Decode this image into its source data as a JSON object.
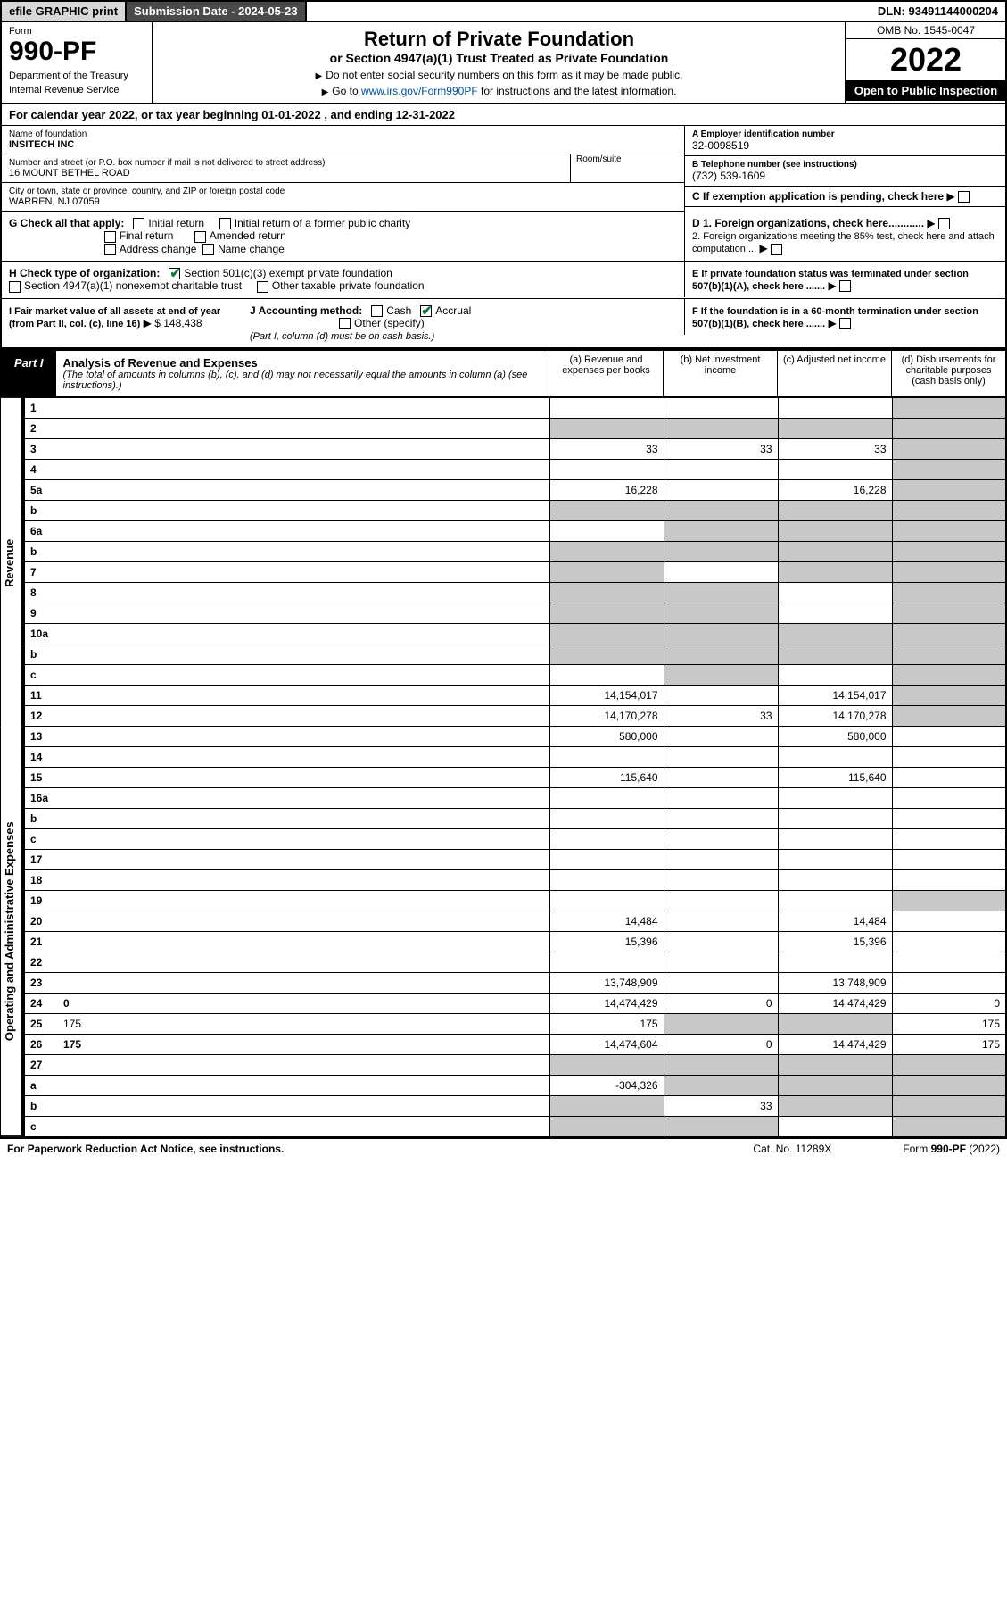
{
  "topbar": {
    "efile": "efile GRAPHIC print",
    "subdate_lbl": "Submission Date - 2024-05-23",
    "dln": "DLN: 93491144000204"
  },
  "header": {
    "form_word": "Form",
    "form_num": "990-PF",
    "dept": "Department of the Treasury",
    "irs": "Internal Revenue Service",
    "title": "Return of Private Foundation",
    "subtitle": "or Section 4947(a)(1) Trust Treated as Private Foundation",
    "instr1": "Do not enter social security numbers on this form as it may be made public.",
    "instr2": "Go to www.irs.gov/Form990PF for instructions and the latest information.",
    "link": "www.irs.gov/Form990PF",
    "omb": "OMB No. 1545-0047",
    "year": "2022",
    "open": "Open to Public Inspection"
  },
  "calyear": "For calendar year 2022, or tax year beginning 01-01-2022           , and ending 12-31-2022",
  "info": {
    "name_lbl": "Name of foundation",
    "name": "INSITECH INC",
    "addr_lbl": "Number and street (or P.O. box number if mail is not delivered to street address)",
    "addr": "16 MOUNT BETHEL ROAD",
    "room_lbl": "Room/suite",
    "city_lbl": "City or town, state or province, country, and ZIP or foreign postal code",
    "city": "WARREN, NJ  07059",
    "ein_lbl": "A Employer identification number",
    "ein": "32-0098519",
    "tel_lbl": "B Telephone number (see instructions)",
    "tel": "(732) 539-1609",
    "c": "C If exemption application is pending, check here",
    "d1": "D 1. Foreign organizations, check here............",
    "d2": "2. Foreign organizations meeting the 85% test, check here and attach computation ...",
    "e": "E  If private foundation status was terminated under section 507(b)(1)(A), check here .......",
    "f": "F  If the foundation is in a 60-month termination under section 507(b)(1)(B), check here .......",
    "g_lbl": "G Check all that apply:",
    "g_initial": "Initial return",
    "g_initial_former": "Initial return of a former public charity",
    "g_final": "Final return",
    "g_amended": "Amended return",
    "g_addr": "Address change",
    "g_name": "Name change",
    "h_lbl": "H Check type of organization:",
    "h_501": "Section 501(c)(3) exempt private foundation",
    "h_4947": "Section 4947(a)(1) nonexempt charitable trust",
    "h_other_tax": "Other taxable private foundation",
    "i_lbl": "I Fair market value of all assets at end of year (from Part II, col. (c), line 16)",
    "i_val": "$  148,438",
    "j_lbl": "J Accounting method:",
    "j_cash": "Cash",
    "j_accrual": "Accrual",
    "j_other": "Other (specify)",
    "j_note": "(Part I, column (d) must be on cash basis.)"
  },
  "part1": {
    "label": "Part I",
    "title": "Analysis of Revenue and Expenses",
    "titlenote": "(The total of amounts in columns (b), (c), and (d) may not necessarily equal the amounts in column (a) (see instructions).)",
    "colA": "(a)   Revenue and expenses per books",
    "colB": "(b)   Net investment income",
    "colC": "(c)   Adjusted net income",
    "colD": "(d)   Disbursements for charitable purposes (cash basis only)"
  },
  "sidelabels": {
    "rev": "Revenue",
    "ops": "Operating and Administrative Expenses"
  },
  "rows": [
    {
      "n": "1",
      "d": "",
      "a": "",
      "b": "",
      "c": "",
      "shadeD": true
    },
    {
      "n": "2",
      "d": "",
      "a": "",
      "b": "",
      "c": "",
      "shadeA": true,
      "shadeB": true,
      "shadeC": true,
      "shadeD": true
    },
    {
      "n": "3",
      "d": "",
      "a": "33",
      "b": "33",
      "c": "33",
      "shadeD": true
    },
    {
      "n": "4",
      "d": "",
      "a": "",
      "b": "",
      "c": "",
      "shadeD": true
    },
    {
      "n": "5a",
      "d": "",
      "a": "16,228",
      "b": "",
      "c": "16,228",
      "shadeD": true
    },
    {
      "n": "b",
      "d": "",
      "a": "",
      "b": "",
      "c": "",
      "shadeA": true,
      "shadeB": true,
      "shadeC": true,
      "shadeD": true
    },
    {
      "n": "6a",
      "d": "",
      "a": "",
      "b": "",
      "c": "",
      "shadeB": true,
      "shadeC": true,
      "shadeD": true
    },
    {
      "n": "b",
      "d": "",
      "a": "",
      "b": "",
      "c": "",
      "shadeA": true,
      "shadeB": true,
      "shadeC": true,
      "shadeD": true
    },
    {
      "n": "7",
      "d": "",
      "a": "",
      "b": "",
      "c": "",
      "shadeA": true,
      "shadeC": true,
      "shadeD": true
    },
    {
      "n": "8",
      "d": "",
      "a": "",
      "b": "",
      "c": "",
      "shadeA": true,
      "shadeB": true,
      "shadeD": true
    },
    {
      "n": "9",
      "d": "",
      "a": "",
      "b": "",
      "c": "",
      "shadeA": true,
      "shadeB": true,
      "shadeD": true
    },
    {
      "n": "10a",
      "d": "",
      "a": "",
      "b": "",
      "c": "",
      "shadeA": true,
      "shadeB": true,
      "shadeC": true,
      "shadeD": true
    },
    {
      "n": "b",
      "d": "",
      "a": "",
      "b": "",
      "c": "",
      "shadeA": true,
      "shadeB": true,
      "shadeC": true,
      "shadeD": true
    },
    {
      "n": "c",
      "d": "",
      "a": "",
      "b": "",
      "c": "",
      "shadeB": true,
      "shadeD": true
    },
    {
      "n": "11",
      "d": "",
      "a": "14,154,017",
      "b": "",
      "c": "14,154,017",
      "shadeD": true
    },
    {
      "n": "12",
      "d": "",
      "a": "14,170,278",
      "b": "33",
      "c": "14,170,278",
      "shadeD": true,
      "bold": true
    },
    {
      "n": "13",
      "d": "",
      "a": "580,000",
      "b": "",
      "c": "580,000"
    },
    {
      "n": "14",
      "d": "",
      "a": "",
      "b": "",
      "c": ""
    },
    {
      "n": "15",
      "d": "",
      "a": "115,640",
      "b": "",
      "c": "115,640"
    },
    {
      "n": "16a",
      "d": "",
      "a": "",
      "b": "",
      "c": ""
    },
    {
      "n": "b",
      "d": "",
      "a": "",
      "b": "",
      "c": ""
    },
    {
      "n": "c",
      "d": "",
      "a": "",
      "b": "",
      "c": ""
    },
    {
      "n": "17",
      "d": "",
      "a": "",
      "b": "",
      "c": ""
    },
    {
      "n": "18",
      "d": "",
      "a": "",
      "b": "",
      "c": ""
    },
    {
      "n": "19",
      "d": "",
      "a": "",
      "b": "",
      "c": "",
      "shadeD": true
    },
    {
      "n": "20",
      "d": "",
      "a": "14,484",
      "b": "",
      "c": "14,484"
    },
    {
      "n": "21",
      "d": "",
      "a": "15,396",
      "b": "",
      "c": "15,396"
    },
    {
      "n": "22",
      "d": "",
      "a": "",
      "b": "",
      "c": ""
    },
    {
      "n": "23",
      "d": "",
      "a": "13,748,909",
      "b": "",
      "c": "13,748,909"
    },
    {
      "n": "24",
      "d": "0",
      "a": "14,474,429",
      "b": "0",
      "c": "14,474,429",
      "bold": true
    },
    {
      "n": "25",
      "d": "175",
      "a": "175",
      "b": "",
      "c": "",
      "shadeB": true,
      "shadeC": true
    },
    {
      "n": "26",
      "d": "175",
      "a": "14,474,604",
      "b": "0",
      "c": "14,474,429",
      "bold": true
    },
    {
      "n": "27",
      "d": "",
      "a": "",
      "b": "",
      "c": "",
      "shadeA": true,
      "shadeB": true,
      "shadeC": true,
      "shadeD": true
    },
    {
      "n": "a",
      "d": "",
      "a": "-304,326",
      "b": "",
      "c": "",
      "shadeB": true,
      "shadeC": true,
      "shadeD": true,
      "bold": true
    },
    {
      "n": "b",
      "d": "",
      "a": "",
      "b": "33",
      "c": "",
      "shadeA": true,
      "shadeC": true,
      "shadeD": true,
      "bold": true
    },
    {
      "n": "c",
      "d": "",
      "a": "",
      "b": "",
      "c": "",
      "shadeA": true,
      "shadeB": true,
      "shadeD": true,
      "bold": true
    }
  ],
  "footer": {
    "left": "For Paperwork Reduction Act Notice, see instructions.",
    "mid": "Cat. No. 11289X",
    "right": "Form 990-PF (2022)"
  },
  "colors": {
    "shade": "#c8c8c8",
    "darkbar": "#4a4a4a",
    "greybar": "#d8d8d8",
    "checkgreen": "#0a7a3a",
    "link": "#0050a0"
  }
}
